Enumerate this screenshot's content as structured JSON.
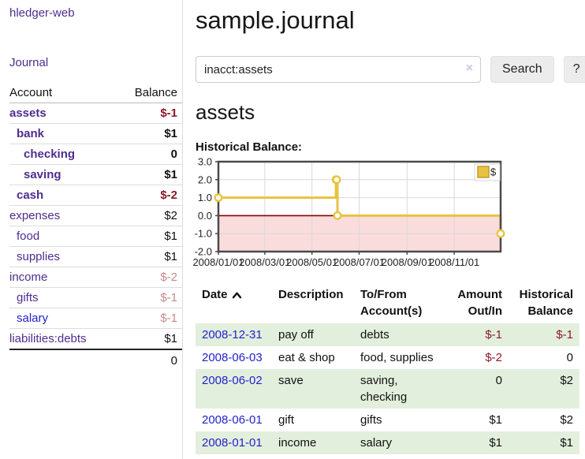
{
  "sidebar": {
    "app_title": "hledger-web",
    "journal_label": "Journal",
    "accounts": {
      "header_account": "Account",
      "header_balance": "Balance",
      "rows": [
        {
          "name": "assets",
          "balance": "$-1",
          "level": 1,
          "emph": true,
          "bal_class": "neg-strong"
        },
        {
          "name": "bank",
          "balance": "$1",
          "level": 2,
          "emph": true,
          "bal_class": "pos-strong"
        },
        {
          "name": "checking",
          "balance": "0",
          "level": 3,
          "emph": true,
          "bal_class": "pos-strong"
        },
        {
          "name": "saving",
          "balance": "$1",
          "level": 3,
          "emph": true,
          "bal_class": "pos-strong"
        },
        {
          "name": "cash",
          "balance": "$-2",
          "level": 2,
          "emph": true,
          "bal_class": "neg-strong"
        },
        {
          "name": "expenses",
          "balance": "$2",
          "level": 1,
          "emph": false,
          "bal_class": "pos"
        },
        {
          "name": "food",
          "balance": "$1",
          "level": 2,
          "emph": false,
          "bal_class": "pos"
        },
        {
          "name": "supplies",
          "balance": "$1",
          "level": 2,
          "emph": false,
          "bal_class": "pos"
        },
        {
          "name": "income",
          "balance": "$-2",
          "level": 1,
          "emph": false,
          "bal_class": "neg-soft"
        },
        {
          "name": "gifts",
          "balance": "$-1",
          "level": 2,
          "emph": false,
          "bal_class": "neg-soft"
        },
        {
          "name": "salary",
          "balance": "$-1",
          "level": 2,
          "emph": false,
          "bal_class": "neg-soft",
          "link_style": "blue"
        },
        {
          "name": "liabilities:debts",
          "balance": "$1",
          "level": 1,
          "emph": false,
          "bal_class": "pos"
        }
      ],
      "total": "0"
    }
  },
  "main": {
    "title": "sample.journal",
    "search": {
      "value": "inacct:assets",
      "clear_icon": "×",
      "button_label": "Search",
      "help_label": "?"
    },
    "account_heading": "assets",
    "chart_heading": "Historical Balance:"
  },
  "chart_data": {
    "type": "line",
    "step": true,
    "title": "Historical Balance",
    "series": [
      {
        "name": "$",
        "points": [
          [
            "2008-01-01",
            1
          ],
          [
            "2008-06-01",
            2
          ],
          [
            "2008-06-02",
            2
          ],
          [
            "2008-06-03",
            0
          ],
          [
            "2008-12-31",
            -1
          ]
        ]
      }
    ],
    "xrange": [
      "2008-01-01",
      "2008-12-31"
    ],
    "ylim": [
      -2,
      3
    ],
    "yticks": [
      3,
      2,
      1,
      0,
      -1,
      -2
    ],
    "ytick_labels": [
      "3.0",
      "2.0",
      "1.0",
      "0.0",
      "-1.0",
      "-2.0"
    ],
    "xticks": [
      "2008-01-01",
      "2008-03-01",
      "2008-05-01",
      "2008-07-01",
      "2008-09-01",
      "2008-11-01"
    ],
    "xtick_labels": [
      "2008/01/01",
      "2008/03/01",
      "2008/05/01",
      "2008/07/01",
      "2008/09/01",
      "2008/11/01"
    ],
    "legend_position": "top-right",
    "grid": true,
    "colors": {
      "line": "#e8c33e",
      "line_border": "#c49b2e",
      "point_fill": "#fffdf2",
      "negative_fill": "#fbdcdc",
      "zero_line": "#8b0000",
      "grid": "#d9d9d9",
      "border": "#4a4a4a"
    }
  },
  "register": {
    "headers": {
      "date": "Date",
      "description": "Description",
      "tofrom": "To/From Account(s)",
      "amount": "Amount Out/In",
      "balance": "Historical Balance"
    },
    "sort_icon": "chevron-up",
    "rows": [
      {
        "date": "2008-12-31",
        "description": "pay off",
        "tofrom": "debts",
        "amount": "$-1",
        "amount_neg": true,
        "balance": "$-1",
        "balance_neg": true
      },
      {
        "date": "2008-06-03",
        "description": "eat & shop",
        "tofrom": "food, supplies",
        "amount": "$-2",
        "amount_neg": true,
        "balance": "0",
        "balance_neg": false
      },
      {
        "date": "2008-06-02",
        "description": "save",
        "tofrom": "saving, checking",
        "amount": "0",
        "amount_neg": false,
        "balance": "$2",
        "balance_neg": false
      },
      {
        "date": "2008-06-01",
        "description": "gift",
        "tofrom": "gifts",
        "amount": "$1",
        "amount_neg": false,
        "balance": "$2",
        "balance_neg": false
      },
      {
        "date": "2008-01-01",
        "description": "income",
        "tofrom": "salary",
        "amount": "$1",
        "amount_neg": false,
        "balance": "$1",
        "balance_neg": false
      }
    ]
  }
}
